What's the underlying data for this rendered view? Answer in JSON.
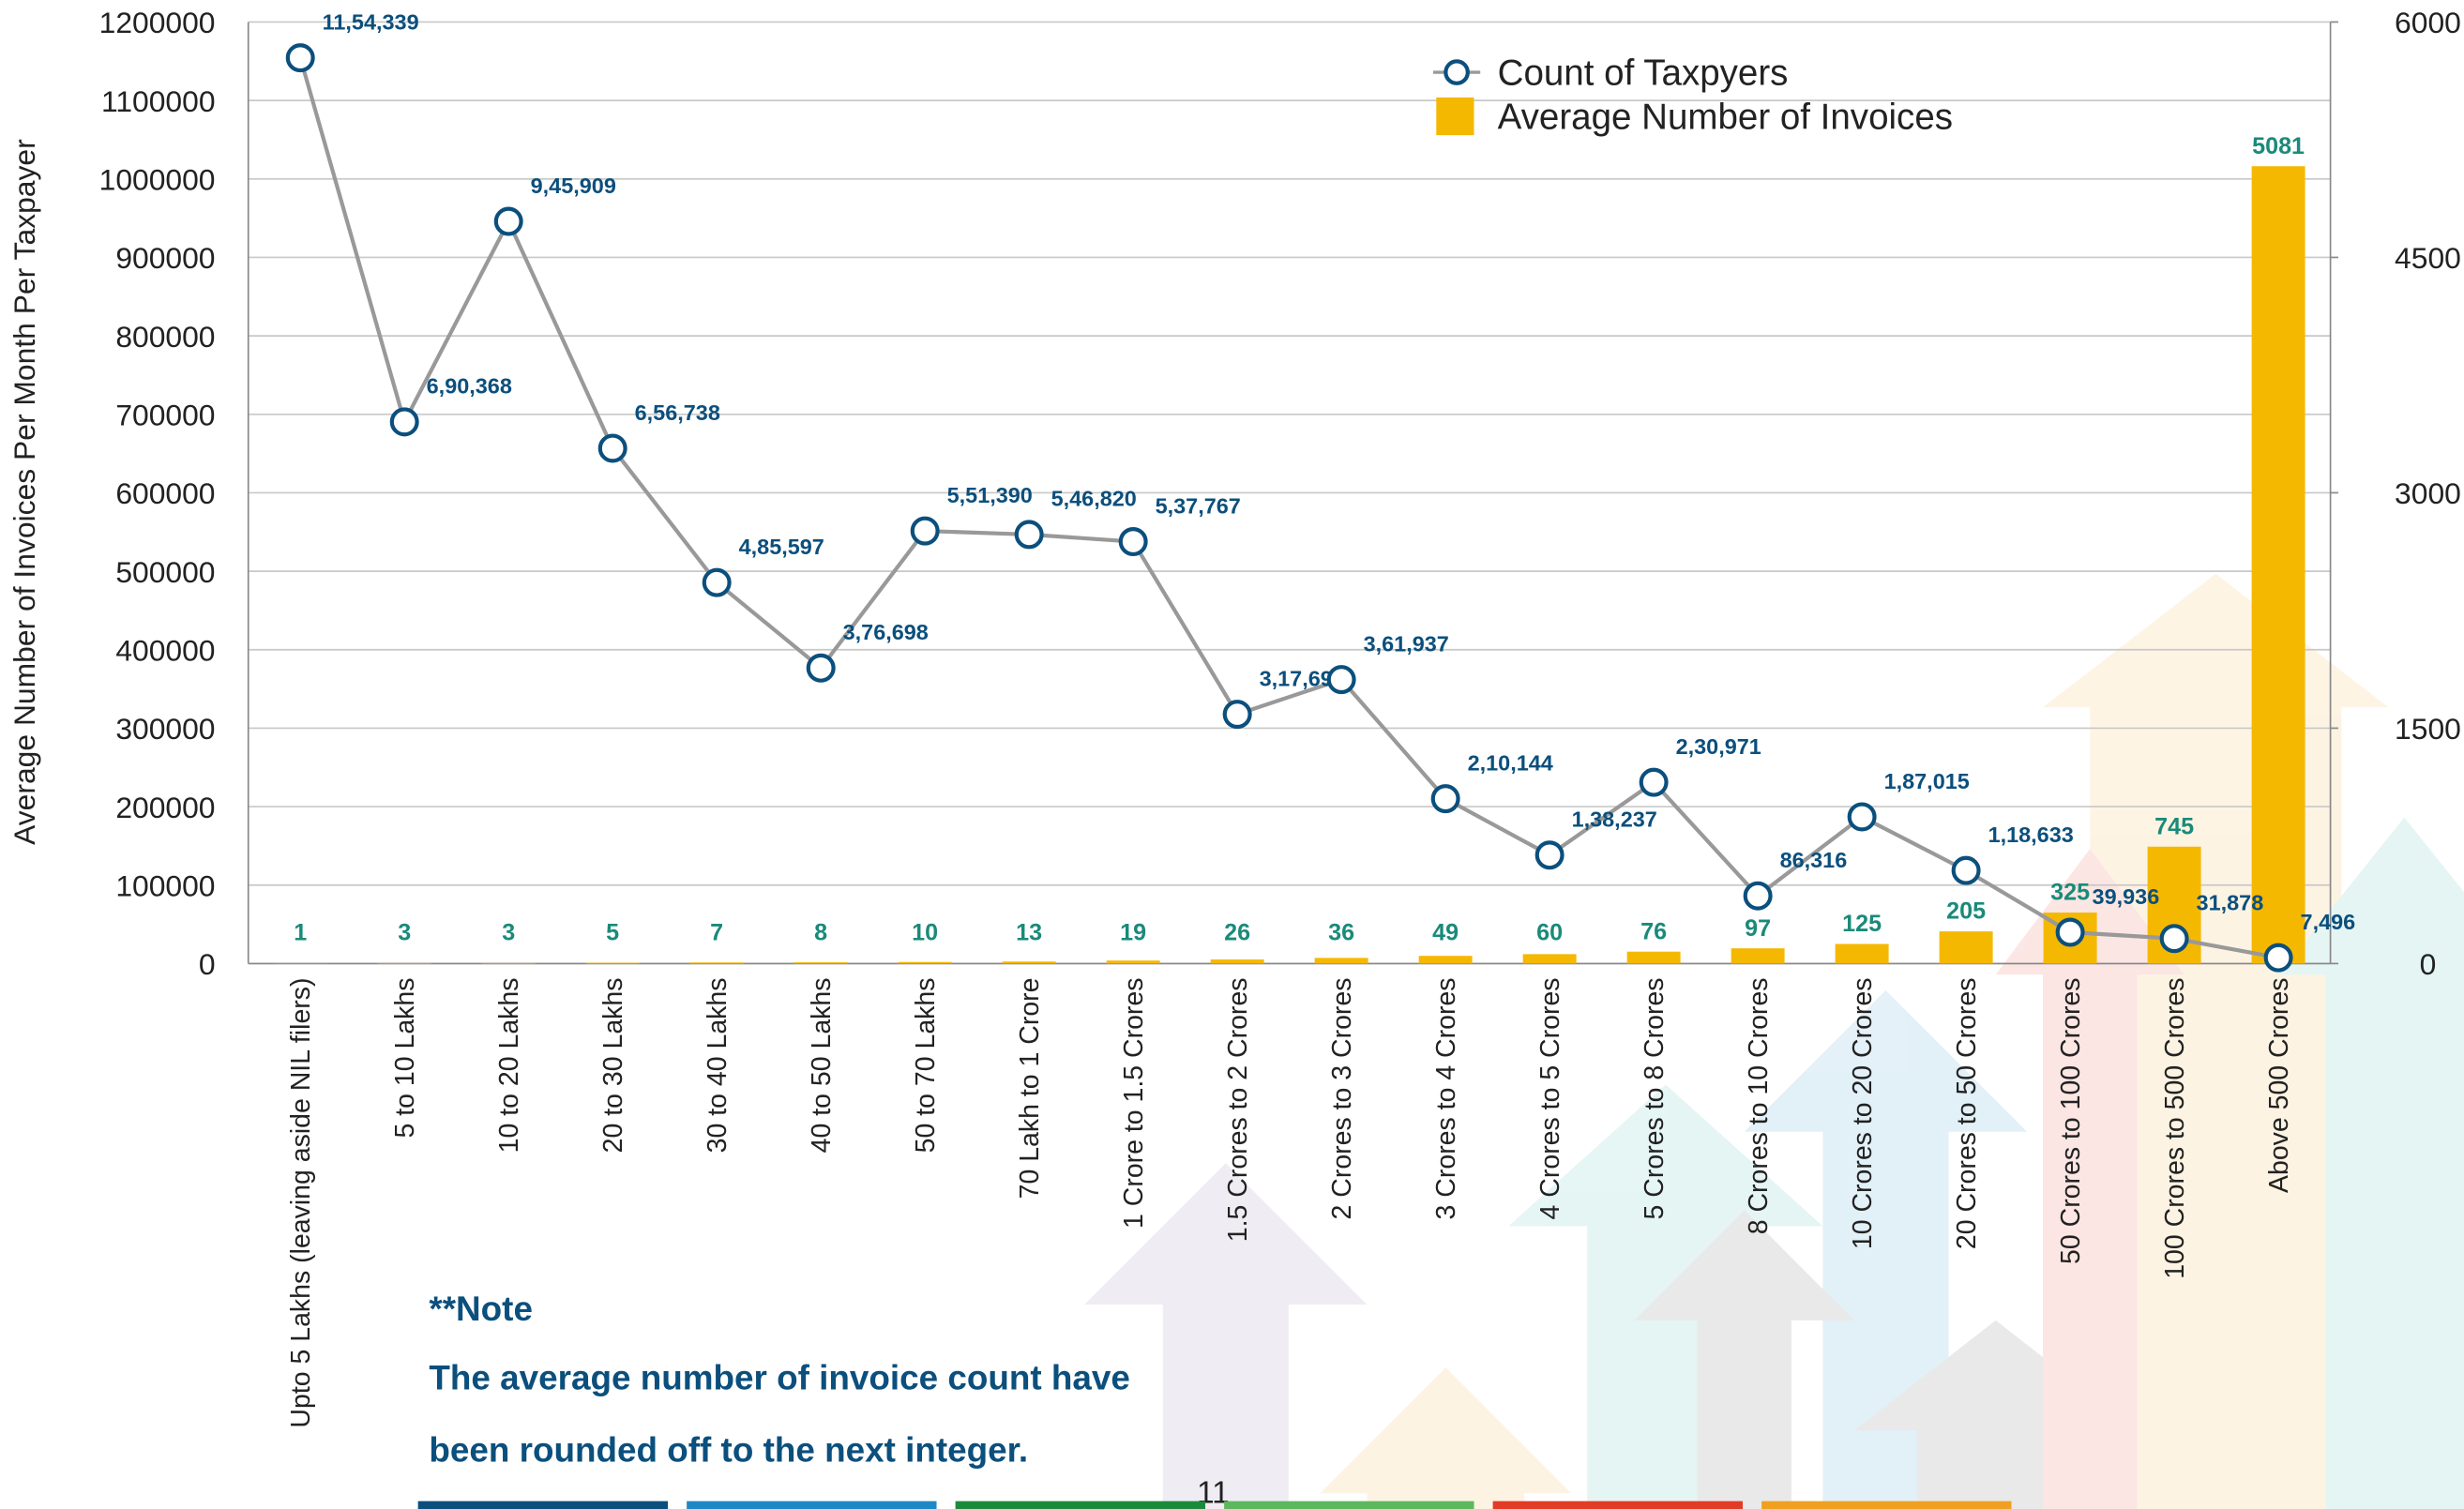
{
  "chart_data": {
    "type": "bar_line",
    "y_axis_label": "Average Number of Invoices Per Month Per Taxpayer",
    "categories": [
      "Upto 5 Lakhs (leaving aside NIL filers)",
      "5 to 10 Lakhs",
      "10 to 20 Lakhs",
      "20 to 30 Lakhs",
      "30 to 40 Lakhs",
      "40 to 50 Lakhs",
      "50 to 70 Lakhs",
      "70 Lakh to 1 Crore",
      "1 Crore to 1.5 Crores",
      "1.5 Crores to 2 Crores",
      "2 Crores to 3 Crores",
      "3 Crores to 4 Crores",
      "4 Crores to 5 Crores",
      "5 Crores to 8 Crores",
      "8 Crores to 10 Crores",
      "10 Crores to 20 Crores",
      "20 Crores to 50 Crores",
      "50 Crores to 100 Crores",
      "100 Crores to 500 Crores",
      "Above 500 Crores"
    ],
    "series": [
      {
        "name": "Count of Taxpyers",
        "type": "line",
        "color": "#0b4f7d",
        "line_color": "#999999",
        "values": [
          1154339,
          690368,
          945909,
          656738,
          485597,
          376698,
          551390,
          546820,
          537767,
          317698,
          361937,
          210144,
          138237,
          230971,
          86316,
          187015,
          118633,
          39936,
          31878,
          7496
        ],
        "value_labels": [
          "11,54,339",
          "6,90,368",
          "9,45,909",
          "6,56,738",
          "4,85,597",
          "3,76,698",
          "5,51,390",
          "5,46,820",
          "5,37,767",
          "3,17,698",
          "3,61,937",
          "2,10,144",
          "1,38,237",
          "2,30,971",
          "86,316",
          "1,87,015",
          "1,18,633",
          "39,936",
          "31,878",
          "7,496"
        ]
      },
      {
        "name": "Average Number of Invoices",
        "type": "bar",
        "axis": "y2",
        "color": "#f5b800",
        "label_color": "#1a8a7a",
        "values": [
          1,
          3,
          3,
          5,
          7,
          8,
          10,
          13,
          19,
          26,
          36,
          49,
          60,
          76,
          97,
          125,
          205,
          325,
          745,
          5081
        ]
      }
    ],
    "ylim": [
      0,
      1200000
    ],
    "yticks": [
      0,
      100000,
      200000,
      300000,
      400000,
      500000,
      600000,
      700000,
      800000,
      900000,
      1000000,
      1100000,
      1200000
    ],
    "y2lim": [
      0,
      6000
    ],
    "y2ticks": [
      0,
      1500,
      3000,
      4500,
      6000
    ],
    "grid": true,
    "legend": "top-right",
    "note_title": "**Note",
    "note_lines": [
      "The average number of invoice count have",
      "been rounded off to the next integer."
    ],
    "page_number": "11"
  }
}
